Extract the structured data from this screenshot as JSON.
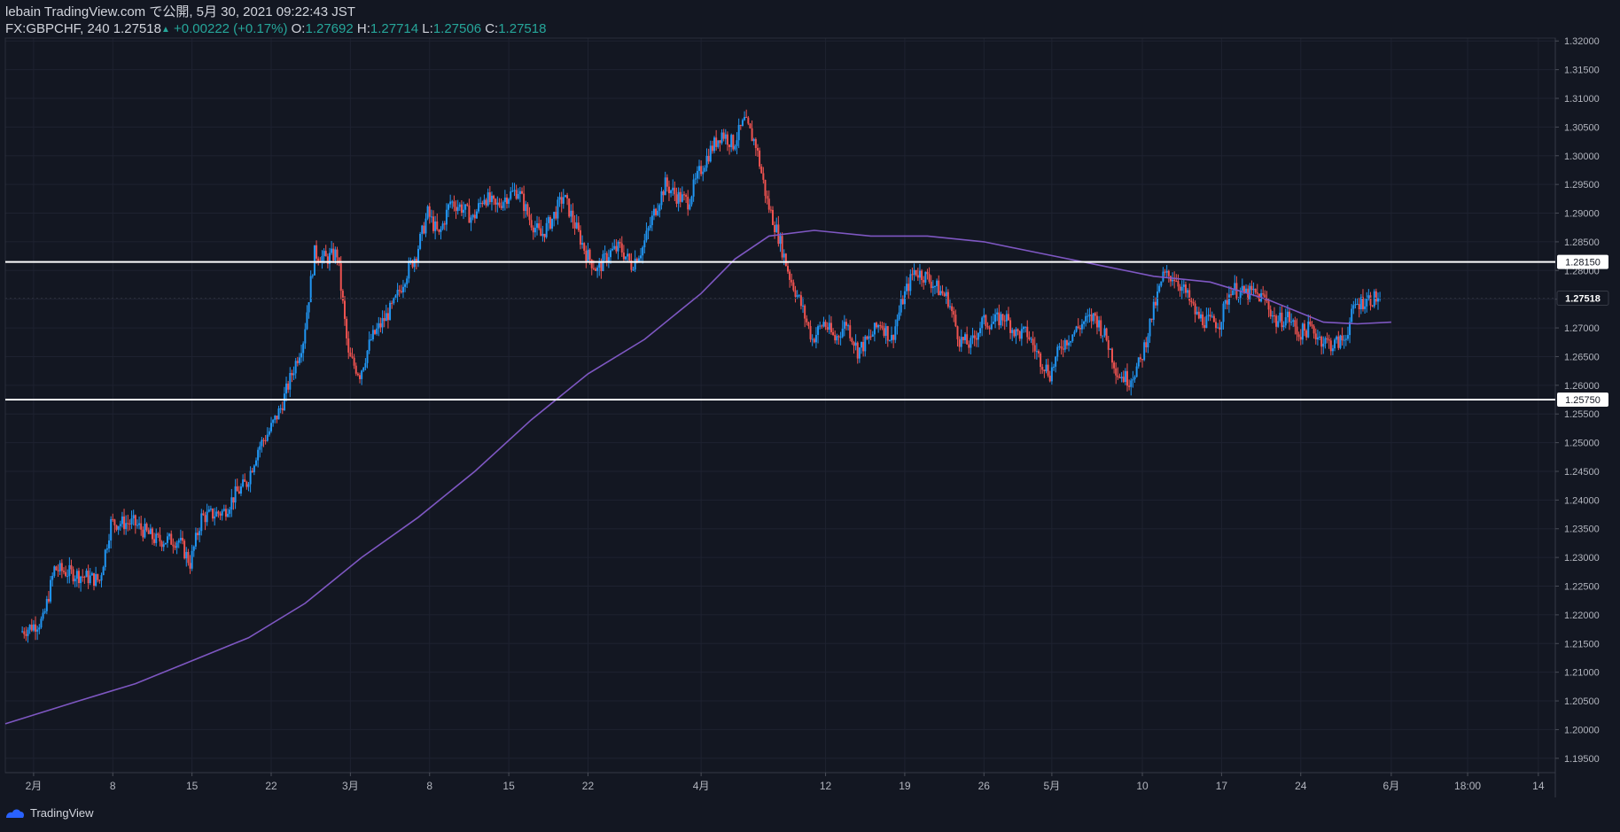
{
  "header": {
    "publish_line": "lebain TradingView.com で公開, 5月 30, 2021 09:22:43 JST",
    "symbol": "FX:GBPCHF, 240",
    "last": "1.27518",
    "change": "+0.00222 (+0.17%)",
    "o_label": "O:",
    "o_value": "1.27692",
    "h_label": "H:",
    "h_value": "1.27714",
    "l_label": "L:",
    "l_value": "1.27506",
    "c_label": "C:",
    "c_value": "1.27518"
  },
  "footer": {
    "brand": "TradingView"
  },
  "colors": {
    "background": "#131722",
    "up_candle": "#2196f3",
    "down_candle": "#ef5350",
    "ma_line": "#7e57c2",
    "level_line": "#ffffff",
    "axis_text": "#b2b5be",
    "grid": "#1e2230"
  },
  "chart_data": {
    "type": "candlestick",
    "y_ticks": [
      "1.19500",
      "1.20000",
      "1.20500",
      "1.21000",
      "1.21500",
      "1.22000",
      "1.22500",
      "1.23000",
      "1.23500",
      "1.24000",
      "1.24500",
      "1.25000",
      "1.25500",
      "1.26000",
      "1.26500",
      "1.27000",
      "1.27500",
      "1.28000",
      "1.28500",
      "1.29000",
      "1.29500",
      "1.30000",
      "1.30500",
      "1.31000",
      "1.31500",
      "1.32000"
    ],
    "ylim": [
      1.1925,
      1.3205
    ],
    "x_ticks": [
      {
        "label": "2月",
        "day": 1
      },
      {
        "label": "8",
        "day": 8
      },
      {
        "label": "15",
        "day": 15
      },
      {
        "label": "22",
        "day": 22
      },
      {
        "label": "3月",
        "day": 29
      },
      {
        "label": "8",
        "day": 36
      },
      {
        "label": "15",
        "day": 43
      },
      {
        "label": "22",
        "day": 50
      },
      {
        "label": "4月",
        "day": 60
      },
      {
        "label": "12",
        "day": 71
      },
      {
        "label": "19",
        "day": 78
      },
      {
        "label": "26",
        "day": 85
      },
      {
        "label": "5月",
        "day": 91
      },
      {
        "label": "10",
        "day": 99
      },
      {
        "label": "17",
        "day": 106
      },
      {
        "label": "24",
        "day": 113
      },
      {
        "label": "6月",
        "day": 121
      },
      {
        "label": "18:00",
        "day": 127.75
      },
      {
        "label": "14",
        "day": 134
      }
    ],
    "xlim": [
      -1.5,
      135.5
    ],
    "levels": [
      {
        "price": 1.2815,
        "label": "1.28150"
      },
      {
        "price": 1.2575,
        "label": "1.25750"
      }
    ],
    "last_price": {
      "price": 1.27518,
      "label": "1.27518"
    },
    "price_path": [
      [
        0,
        1.217
      ],
      [
        2,
        1.219
      ],
      [
        3,
        1.228
      ],
      [
        5,
        1.227
      ],
      [
        7,
        1.226
      ],
      [
        8,
        1.236
      ],
      [
        10,
        1.236
      ],
      [
        12,
        1.233
      ],
      [
        14,
        1.233
      ],
      [
        15,
        1.229
      ],
      [
        16,
        1.237
      ],
      [
        18,
        1.238
      ],
      [
        19,
        1.241
      ],
      [
        20,
        1.243
      ],
      [
        21,
        1.249
      ],
      [
        22,
        1.252
      ],
      [
        23,
        1.256
      ],
      [
        24,
        1.262
      ],
      [
        25,
        1.268
      ],
      [
        26,
        1.283
      ],
      [
        27,
        1.282
      ],
      [
        28,
        1.283
      ],
      [
        29,
        1.265
      ],
      [
        30,
        1.262
      ],
      [
        31,
        1.268
      ],
      [
        32,
        1.271
      ],
      [
        33,
        1.274
      ],
      [
        34,
        1.279
      ],
      [
        35,
        1.283
      ],
      [
        36,
        1.29
      ],
      [
        37,
        1.286
      ],
      [
        38,
        1.292
      ],
      [
        39,
        1.291
      ],
      [
        40,
        1.289
      ],
      [
        41,
        1.293
      ],
      [
        42,
        1.291
      ],
      [
        43,
        1.293
      ],
      [
        44,
        1.294
      ],
      [
        45,
        1.289
      ],
      [
        46,
        1.286
      ],
      [
        47,
        1.289
      ],
      [
        48,
        1.293
      ],
      [
        49,
        1.288
      ],
      [
        50,
        1.283
      ],
      [
        51,
        1.28
      ],
      [
        52,
        1.283
      ],
      [
        53,
        1.284
      ],
      [
        54,
        1.281
      ],
      [
        55,
        1.284
      ],
      [
        56,
        1.29
      ],
      [
        57,
        1.295
      ],
      [
        58,
        1.293
      ],
      [
        59,
        1.292
      ],
      [
        60,
        1.297
      ],
      [
        61,
        1.301
      ],
      [
        62,
        1.304
      ],
      [
        63,
        1.302
      ],
      [
        64,
        1.306
      ],
      [
        65,
        1.302
      ],
      [
        66,
        1.292
      ],
      [
        67,
        1.286
      ],
      [
        68,
        1.279
      ],
      [
        69,
        1.274
      ],
      [
        70,
        1.268
      ],
      [
        71,
        1.271
      ],
      [
        72,
        1.268
      ],
      [
        73,
        1.271
      ],
      [
        74,
        1.266
      ],
      [
        75,
        1.268
      ],
      [
        76,
        1.271
      ],
      [
        77,
        1.268
      ],
      [
        78,
        1.275
      ],
      [
        79,
        1.28
      ],
      [
        80,
        1.279
      ],
      [
        81,
        1.277
      ],
      [
        82,
        1.275
      ],
      [
        83,
        1.268
      ],
      [
        84,
        1.267
      ],
      [
        85,
        1.271
      ],
      [
        86,
        1.271
      ],
      [
        87,
        1.272
      ],
      [
        88,
        1.269
      ],
      [
        89,
        1.269
      ],
      [
        90,
        1.265
      ],
      [
        91,
        1.262
      ],
      [
        92,
        1.267
      ],
      [
        93,
        1.269
      ],
      [
        94,
        1.271
      ],
      [
        95,
        1.272
      ],
      [
        96,
        1.268
      ],
      [
        97,
        1.262
      ],
      [
        98,
        1.261
      ],
      [
        99,
        1.264
      ],
      [
        100,
        1.272
      ],
      [
        101,
        1.279
      ],
      [
        102,
        1.279
      ],
      [
        103,
        1.276
      ],
      [
        104,
        1.272
      ],
      [
        105,
        1.271
      ],
      [
        106,
        1.271
      ],
      [
        107,
        1.277
      ],
      [
        108,
        1.276
      ],
      [
        109,
        1.276
      ],
      [
        110,
        1.275
      ],
      [
        111,
        1.271
      ],
      [
        112,
        1.272
      ],
      [
        113,
        1.269
      ],
      [
        114,
        1.27
      ],
      [
        115,
        1.268
      ],
      [
        116,
        1.267
      ],
      [
        117,
        1.268
      ],
      [
        118,
        1.274
      ],
      [
        119,
        1.275
      ],
      [
        120,
        1.2752
      ]
    ],
    "ma_path": [
      [
        -1.5,
        1.201
      ],
      [
        5,
        1.205
      ],
      [
        10,
        1.208
      ],
      [
        15,
        1.212
      ],
      [
        20,
        1.216
      ],
      [
        25,
        1.222
      ],
      [
        30,
        1.23
      ],
      [
        35,
        1.237
      ],
      [
        40,
        1.245
      ],
      [
        45,
        1.254
      ],
      [
        50,
        1.262
      ],
      [
        55,
        1.268
      ],
      [
        60,
        1.276
      ],
      [
        63,
        1.282
      ],
      [
        66,
        1.286
      ],
      [
        70,
        1.287
      ],
      [
        75,
        1.286
      ],
      [
        80,
        1.286
      ],
      [
        85,
        1.285
      ],
      [
        90,
        1.283
      ],
      [
        95,
        1.281
      ],
      [
        100,
        1.279
      ],
      [
        105,
        1.278
      ],
      [
        110,
        1.275
      ],
      [
        115,
        1.271
      ],
      [
        118,
        1.2707
      ],
      [
        121,
        1.271
      ]
    ]
  }
}
